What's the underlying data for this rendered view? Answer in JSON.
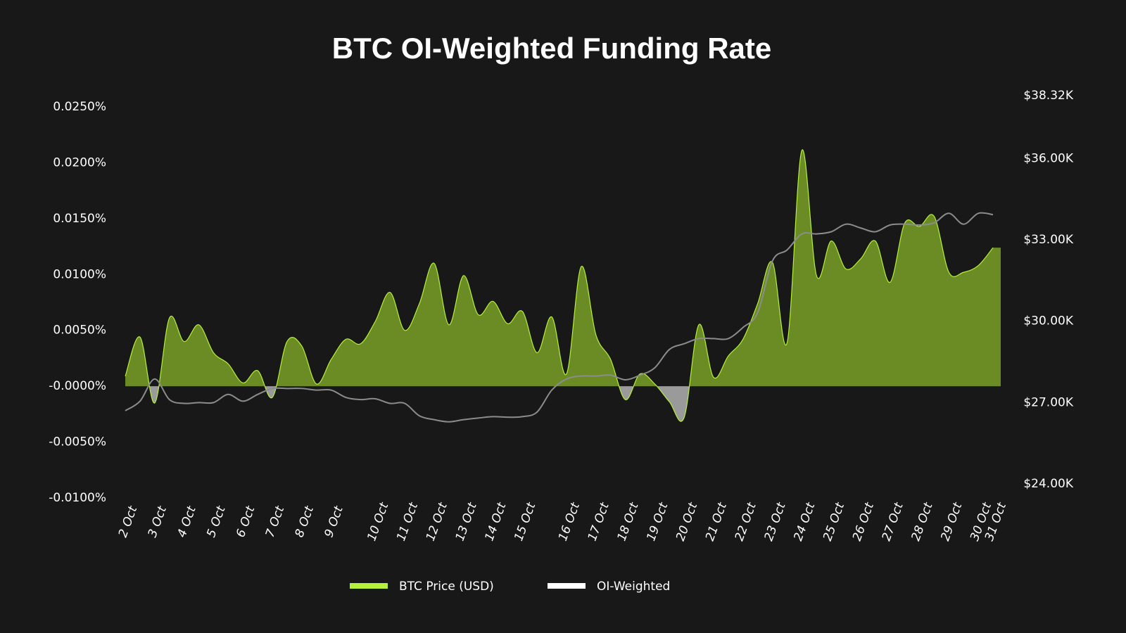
{
  "chart_data": {
    "type": "area-line",
    "title": "BTC OI-Weighted Funding Rate",
    "categories": [
      "2 Oct",
      null,
      "3 Oct",
      null,
      "4 Oct",
      null,
      "5 Oct",
      null,
      "6 Oct",
      null,
      "7 Oct",
      null,
      "8 Oct",
      null,
      "9 Oct",
      null,
      null,
      "10 Oct",
      null,
      "11 Oct",
      null,
      "12 Oct",
      null,
      "13 Oct",
      null,
      "14 Oct",
      null,
      "15 Oct",
      null,
      null,
      "16 Oct",
      null,
      "17 Oct",
      null,
      "18 Oct",
      null,
      "19 Oct",
      null,
      "20 Oct",
      null,
      "21 Oct",
      null,
      "22 Oct",
      null,
      "23 Oct",
      null,
      "24 Oct",
      null,
      "25 Oct",
      null,
      "26 Oct",
      null,
      "27 Oct",
      null,
      "28 Oct",
      null,
      "29 Oct",
      null,
      "30 Oct",
      "31 Oct"
    ],
    "series": [
      {
        "name": "BTC Price (USD)",
        "color": "#b4f03c",
        "fill": "#6b8c24",
        "negative_fill": "#9a9a9a",
        "axis": "y",
        "values": [
          0.0009,
          0.0044,
          -0.0015,
          0.0061,
          0.004,
          0.0055,
          0.003,
          0.002,
          0.0003,
          0.0014,
          -0.001,
          0.004,
          0.0036,
          0.0002,
          0.0024,
          0.0042,
          0.0038,
          0.0058,
          0.0084,
          0.005,
          0.0074,
          0.011,
          0.0055,
          0.0099,
          0.0064,
          0.0076,
          0.0056,
          0.0067,
          0.003,
          0.0062,
          0.0011,
          0.0107,
          0.0046,
          0.0024,
          -0.0012,
          0.0011,
          0.0002,
          -0.0014,
          -0.0028,
          0.0055,
          0.0008,
          0.0027,
          0.0042,
          0.0074,
          0.0111,
          0.0039,
          0.0211,
          0.0099,
          0.013,
          0.0105,
          0.0114,
          0.013,
          0.0093,
          0.0146,
          0.0143,
          0.0152,
          0.0102,
          0.0102,
          0.0108,
          0.0124
        ]
      },
      {
        "name": "OI-Weighted",
        "color": "#ffffff",
        "stroke": "#8c8c8c",
        "axis": "y2",
        "values": [
          26700,
          27050,
          27870,
          27110,
          26970,
          27000,
          27000,
          27300,
          27050,
          27300,
          27520,
          27520,
          27520,
          27460,
          27460,
          27190,
          27110,
          27140,
          26970,
          26970,
          26510,
          26370,
          26290,
          26370,
          26430,
          26480,
          26460,
          26480,
          26650,
          27460,
          27870,
          27980,
          27980,
          28010,
          27840,
          28010,
          28280,
          28960,
          29170,
          29360,
          29360,
          29360,
          29770,
          30320,
          32220,
          32630,
          33220,
          33220,
          33300,
          33580,
          33440,
          33300,
          33550,
          33580,
          33550,
          33630,
          33980,
          33580,
          33980,
          33930
        ]
      }
    ],
    "ylim": [
      -0.01,
      0.025
    ],
    "yticks": [
      {
        "value": 0.025,
        "label": "0.0250%"
      },
      {
        "value": 0.02,
        "label": "0.0200%"
      },
      {
        "value": 0.015,
        "label": "0.0150%"
      },
      {
        "value": 0.01,
        "label": "0.0100%"
      },
      {
        "value": 0.005,
        "label": "0.0050%"
      },
      {
        "value": 0,
        "label": "-0.0000%"
      },
      {
        "value": -0.005,
        "label": "-0.0050%"
      },
      {
        "value": -0.01,
        "label": "-0.0100%"
      }
    ],
    "y2lim": [
      24000,
      38320
    ],
    "y2ticks": [
      {
        "value": 38320,
        "label": "$38.32K"
      },
      {
        "value": 36000,
        "label": "$36.00K"
      },
      {
        "value": 33000,
        "label": "$33.00K"
      },
      {
        "value": 30000,
        "label": "$30.00K"
      },
      {
        "value": 27000,
        "label": "$27.00K"
      },
      {
        "value": 24000,
        "label": "$24.00K"
      }
    ],
    "grid": false
  }
}
